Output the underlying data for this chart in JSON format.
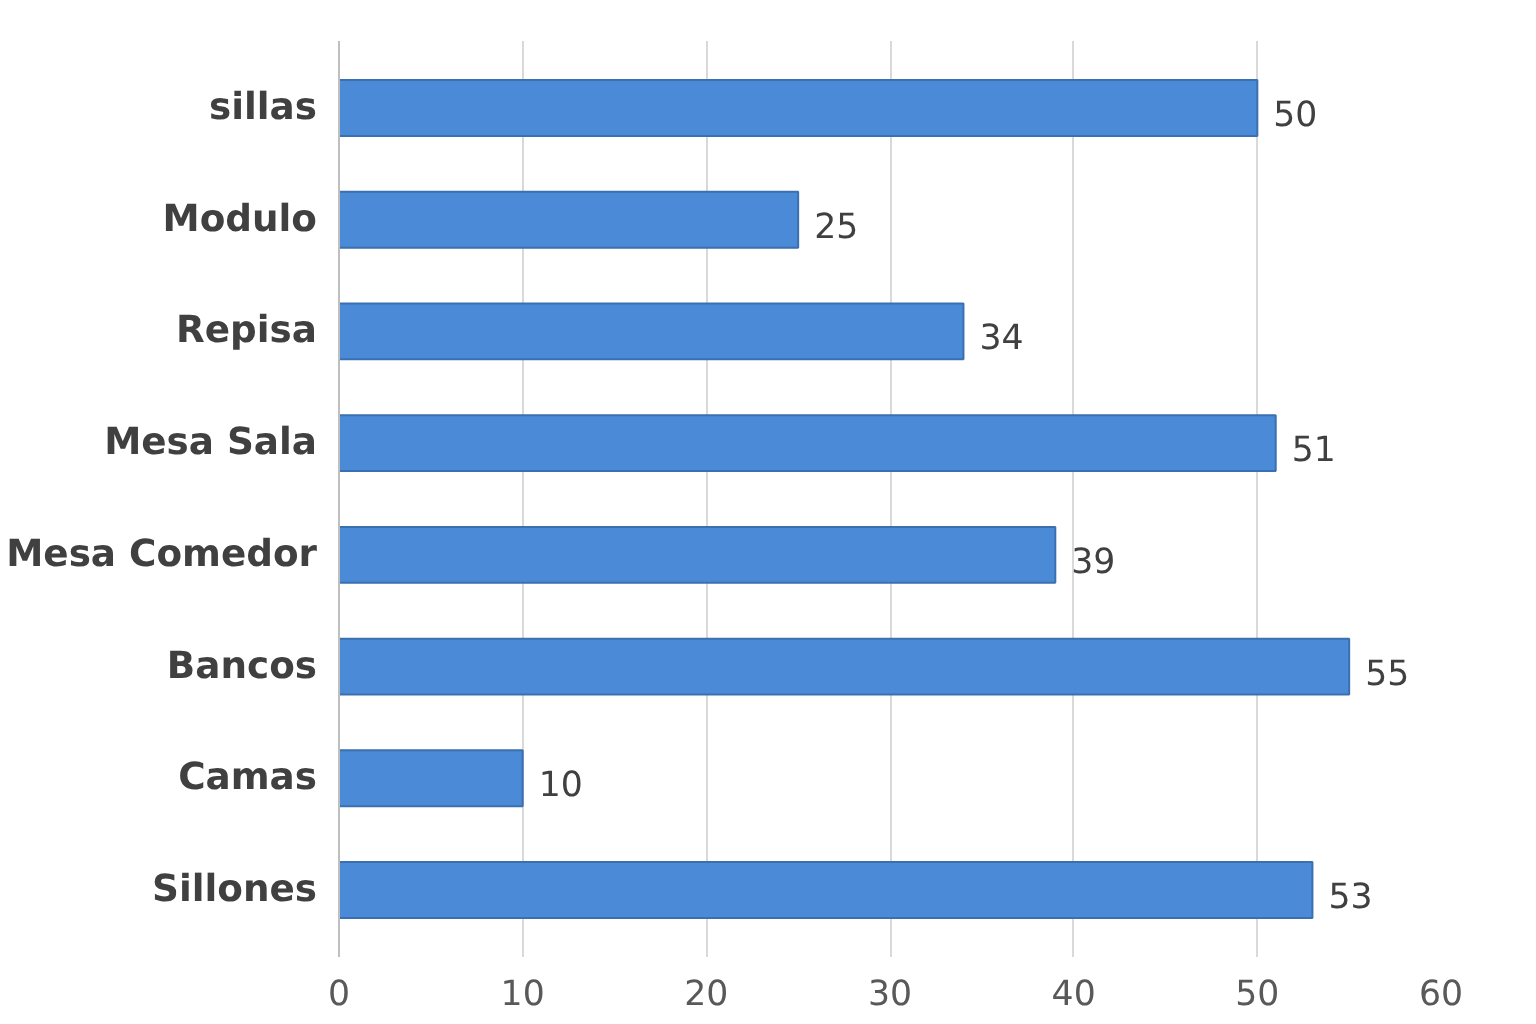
{
  "chart_data": {
    "type": "bar",
    "orientation": "horizontal",
    "categories": [
      "sillas",
      "Modulo",
      "Repisa",
      "Mesa Sala",
      "Mesa Comedor",
      "Bancos",
      "Camas",
      "Sillones"
    ],
    "values": [
      50,
      25,
      34,
      51,
      39,
      55,
      10,
      53
    ],
    "color": "#4a8ad6",
    "xlim": [
      0,
      60
    ],
    "xticks": [
      0,
      10,
      20,
      30,
      40,
      50,
      60
    ],
    "grid": "x",
    "data_labels": true
  }
}
